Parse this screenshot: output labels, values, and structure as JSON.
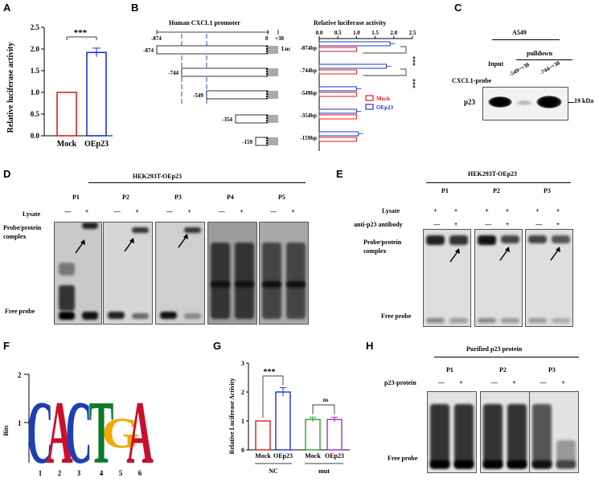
{
  "panels": {
    "A": {
      "label": "A",
      "ylabel": "Relative luciferase activity",
      "yticks": [
        "0.0",
        "0.5",
        "1.0",
        "1.5",
        "2.0",
        "2.5"
      ],
      "categories": [
        "Mock",
        "OEp23"
      ],
      "sig": "***"
    },
    "B": {
      "label": "B",
      "promoter_title": "Human CXCL1 promoter",
      "luc": "Luc",
      "coords": [
        "-874",
        "0",
        "+38"
      ],
      "constructs": [
        "-874",
        "-744",
        "-549",
        "-354",
        "-159"
      ],
      "chart_title": "Relative luciferase activity",
      "xticks": [
        "0.0",
        "0.5",
        "1.0",
        "1.5",
        "2.0",
        "2.5"
      ],
      "rows": [
        "-874bp",
        "-744bp",
        "-549bp",
        "-354bp",
        "-159bp"
      ],
      "legend": [
        "Mock",
        "OEp23"
      ],
      "sig": [
        "***",
        "***"
      ]
    },
    "C": {
      "label": "C",
      "cell": "A549",
      "input": "Input",
      "pulldown": "pulldown",
      "probe_label": "CXCL1-probe",
      "probes": [
        "-549~+38",
        "-744~+38"
      ],
      "protein": "p23",
      "kda": "19 kDa"
    },
    "D": {
      "label": "D",
      "title": "HEK293T-OEp23",
      "lanes": [
        "P1",
        "P2",
        "P3",
        "P4",
        "P5"
      ],
      "lysate": "Lysate",
      "minus": "—",
      "plus": "+",
      "complex": "Probe/protein complex",
      "free": "Free probe"
    },
    "E": {
      "label": "E",
      "title": "HEK293T-OEp23",
      "lanes": [
        "P1",
        "P2",
        "P3"
      ],
      "lysate": "Lysate",
      "antibody": "anti-p23 antibody",
      "complex": "Probe/protein complex",
      "free": "Free probe"
    },
    "F": {
      "label": "F",
      "ylabel": "Bits",
      "yticks": [
        "2",
        "1"
      ],
      "letters": [
        "C",
        "A",
        "C",
        "T",
        "G",
        "A"
      ],
      "minor_letter": "G",
      "positions": [
        "1",
        "2",
        "3",
        "4",
        "5",
        "6"
      ]
    },
    "G": {
      "label": "G",
      "ylabel": "Relative Luciferase Activity",
      "yticks": [
        "0",
        "1",
        "2",
        "3"
      ],
      "categories": [
        "Mock",
        "OEp23",
        "Mock",
        "OEp23"
      ],
      "groups": [
        "NC",
        "mut"
      ],
      "sig": [
        "***",
        "ns"
      ]
    },
    "H": {
      "label": "H",
      "title": "Purified p23 protein",
      "lanes": [
        "P1",
        "P2",
        "P3"
      ],
      "protein": "p23-protein",
      "free": "Free probe"
    }
  },
  "chart_data": [
    {
      "type": "bar",
      "panel": "A",
      "categories": [
        "Mock",
        "OEp23"
      ],
      "values": [
        1.0,
        1.92
      ],
      "errors": [
        0,
        0.1
      ],
      "ylabel": "Relative luciferase activity",
      "ylim": [
        0,
        2.5
      ]
    },
    {
      "type": "bar",
      "panel": "B",
      "orientation": "horizontal",
      "categories": [
        "-874bp",
        "-744bp",
        "-549bp",
        "-354bp",
        "-159bp"
      ],
      "series": [
        {
          "name": "Mock",
          "values": [
            1,
            1,
            1,
            1,
            1
          ]
        },
        {
          "name": "OEp23",
          "values": [
            1.9,
            1.8,
            1.0,
            1.0,
            1.05
          ]
        }
      ],
      "xlim": [
        0,
        2.5
      ]
    },
    {
      "type": "bar",
      "panel": "G",
      "categories": [
        "Mock",
        "OEp23",
        "Mock",
        "OEp23"
      ],
      "values": [
        1.0,
        2.0,
        1.05,
        1.05
      ],
      "errors": [
        0,
        0.15,
        0.08,
        0.08
      ],
      "ylabel": "Relative Luciferase Activity",
      "ylim": [
        0,
        3
      ]
    }
  ],
  "colors": {
    "mock": "#e41a1c",
    "oep23": "#1a36c8",
    "mut_mock": "#2ca02c",
    "mut_oep23": "#9b30c8",
    "motif_c": "#1c3fb5",
    "motif_a": "#c8102e",
    "motif_t": "#0d7a2a",
    "motif_g": "#f2a900"
  }
}
